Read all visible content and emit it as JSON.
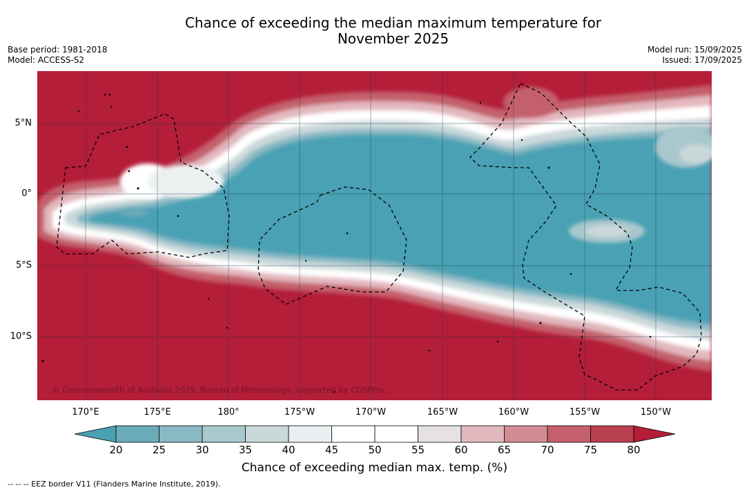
{
  "title_line1": "Chance of exceeding the median maximum temperature for",
  "title_line2": "November 2025",
  "base_period": "Base period: 1981-2018",
  "model": "Model: ACCESS-S2",
  "model_run": "Model run: 15/09/2025",
  "issued": "Issued: 17/09/2025",
  "copyright": "© Commonwealth of Australia 2025, Bureau of Meteorology, supported by COSPPac",
  "lat_labels": [
    "5°N",
    "0°",
    "5°S",
    "10°S"
  ],
  "lon_labels": [
    "170°E",
    "175°E",
    "180°",
    "175°W",
    "170°W",
    "165°W",
    "160°W",
    "155°W",
    "150°W"
  ],
  "colorbar": {
    "ticks": [
      "20",
      "25",
      "30",
      "35",
      "40",
      "45",
      "50",
      "55",
      "60",
      "65",
      "70",
      "75",
      "80"
    ],
    "colors": [
      "#4aa1b3",
      "#6aabb9",
      "#89b9c4",
      "#a9c8cd",
      "#cad8da",
      "#eaf0f2",
      "#ffffff",
      "#ffffff",
      "#e6e2e3",
      "#e2b8be",
      "#d28c94",
      "#c4616c",
      "#b9404f",
      "#b41e38"
    ],
    "label": "Chance of exceeding median max. temp. (%)"
  },
  "legend_note": "--  --  -- EEZ border V11 (Flanders Marine Institute, 2019)."
}
